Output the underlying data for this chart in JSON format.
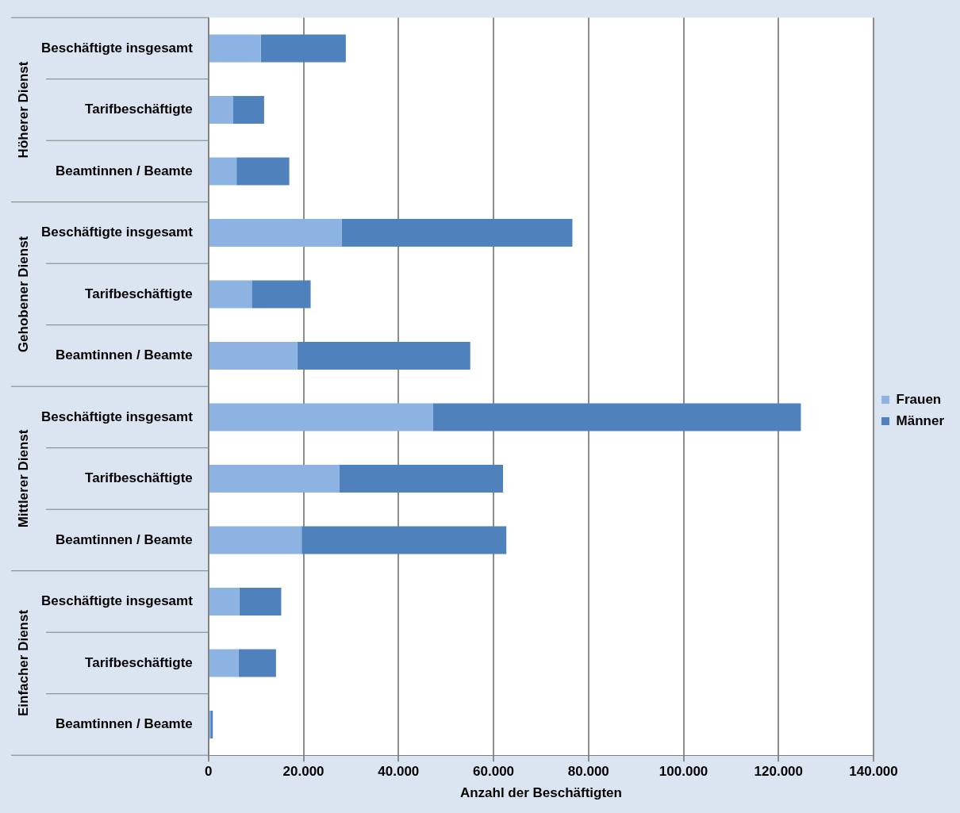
{
  "chart_data": {
    "type": "bar",
    "orientation": "horizontal",
    "stacked": true,
    "categories": [
      "Beschäftigte insgesamt",
      "Tarifbeschäftigte",
      "Beamtinnen / Beamte",
      "Beschäftigte insgesamt",
      "Tarifbeschäftigte",
      "Beamtinnen / Beamte",
      "Beschäftigte insgesamt",
      "Tarifbeschäftigte",
      "Beamtinnen / Beamte",
      "Beschäftigte insgesamt",
      "Tarifbeschäftigte",
      "Beamtinnen / Beamte"
    ],
    "series": [
      {
        "name": "Frauen",
        "color": "#8db3e2",
        "values": [
          11000,
          5200,
          5900,
          28000,
          9100,
          18700,
          47200,
          27500,
          19600,
          6500,
          6300,
          400
        ]
      },
      {
        "name": "Männer",
        "color": "#4f81bd",
        "values": [
          17900,
          6500,
          11100,
          48600,
          12400,
          36400,
          77500,
          34500,
          43100,
          8800,
          7900,
          500
        ]
      }
    ],
    "annotations": [
      "Höherer Dienst",
      "Gehobener Dienst",
      "Mittlerer Dienst",
      "Einfacher Dienst"
    ],
    "xlabel": "Anzahl der Beschäftigten",
    "xlim": [
      0,
      140000
    ],
    "xticks": [
      0,
      {
        "value": 20000,
        "label": "20.000"
      },
      {
        "value": 40000,
        "label": "40.000"
      },
      {
        "value": 60000,
        "label": "60.000"
      },
      {
        "value": 80000,
        "label": "80.000"
      },
      {
        "value": 100000,
        "label": "100.000"
      },
      {
        "value": 120000,
        "label": "120.000"
      },
      {
        "value": 140000,
        "label": "140.000"
      }
    ],
    "grid": "x",
    "legend": "right"
  }
}
